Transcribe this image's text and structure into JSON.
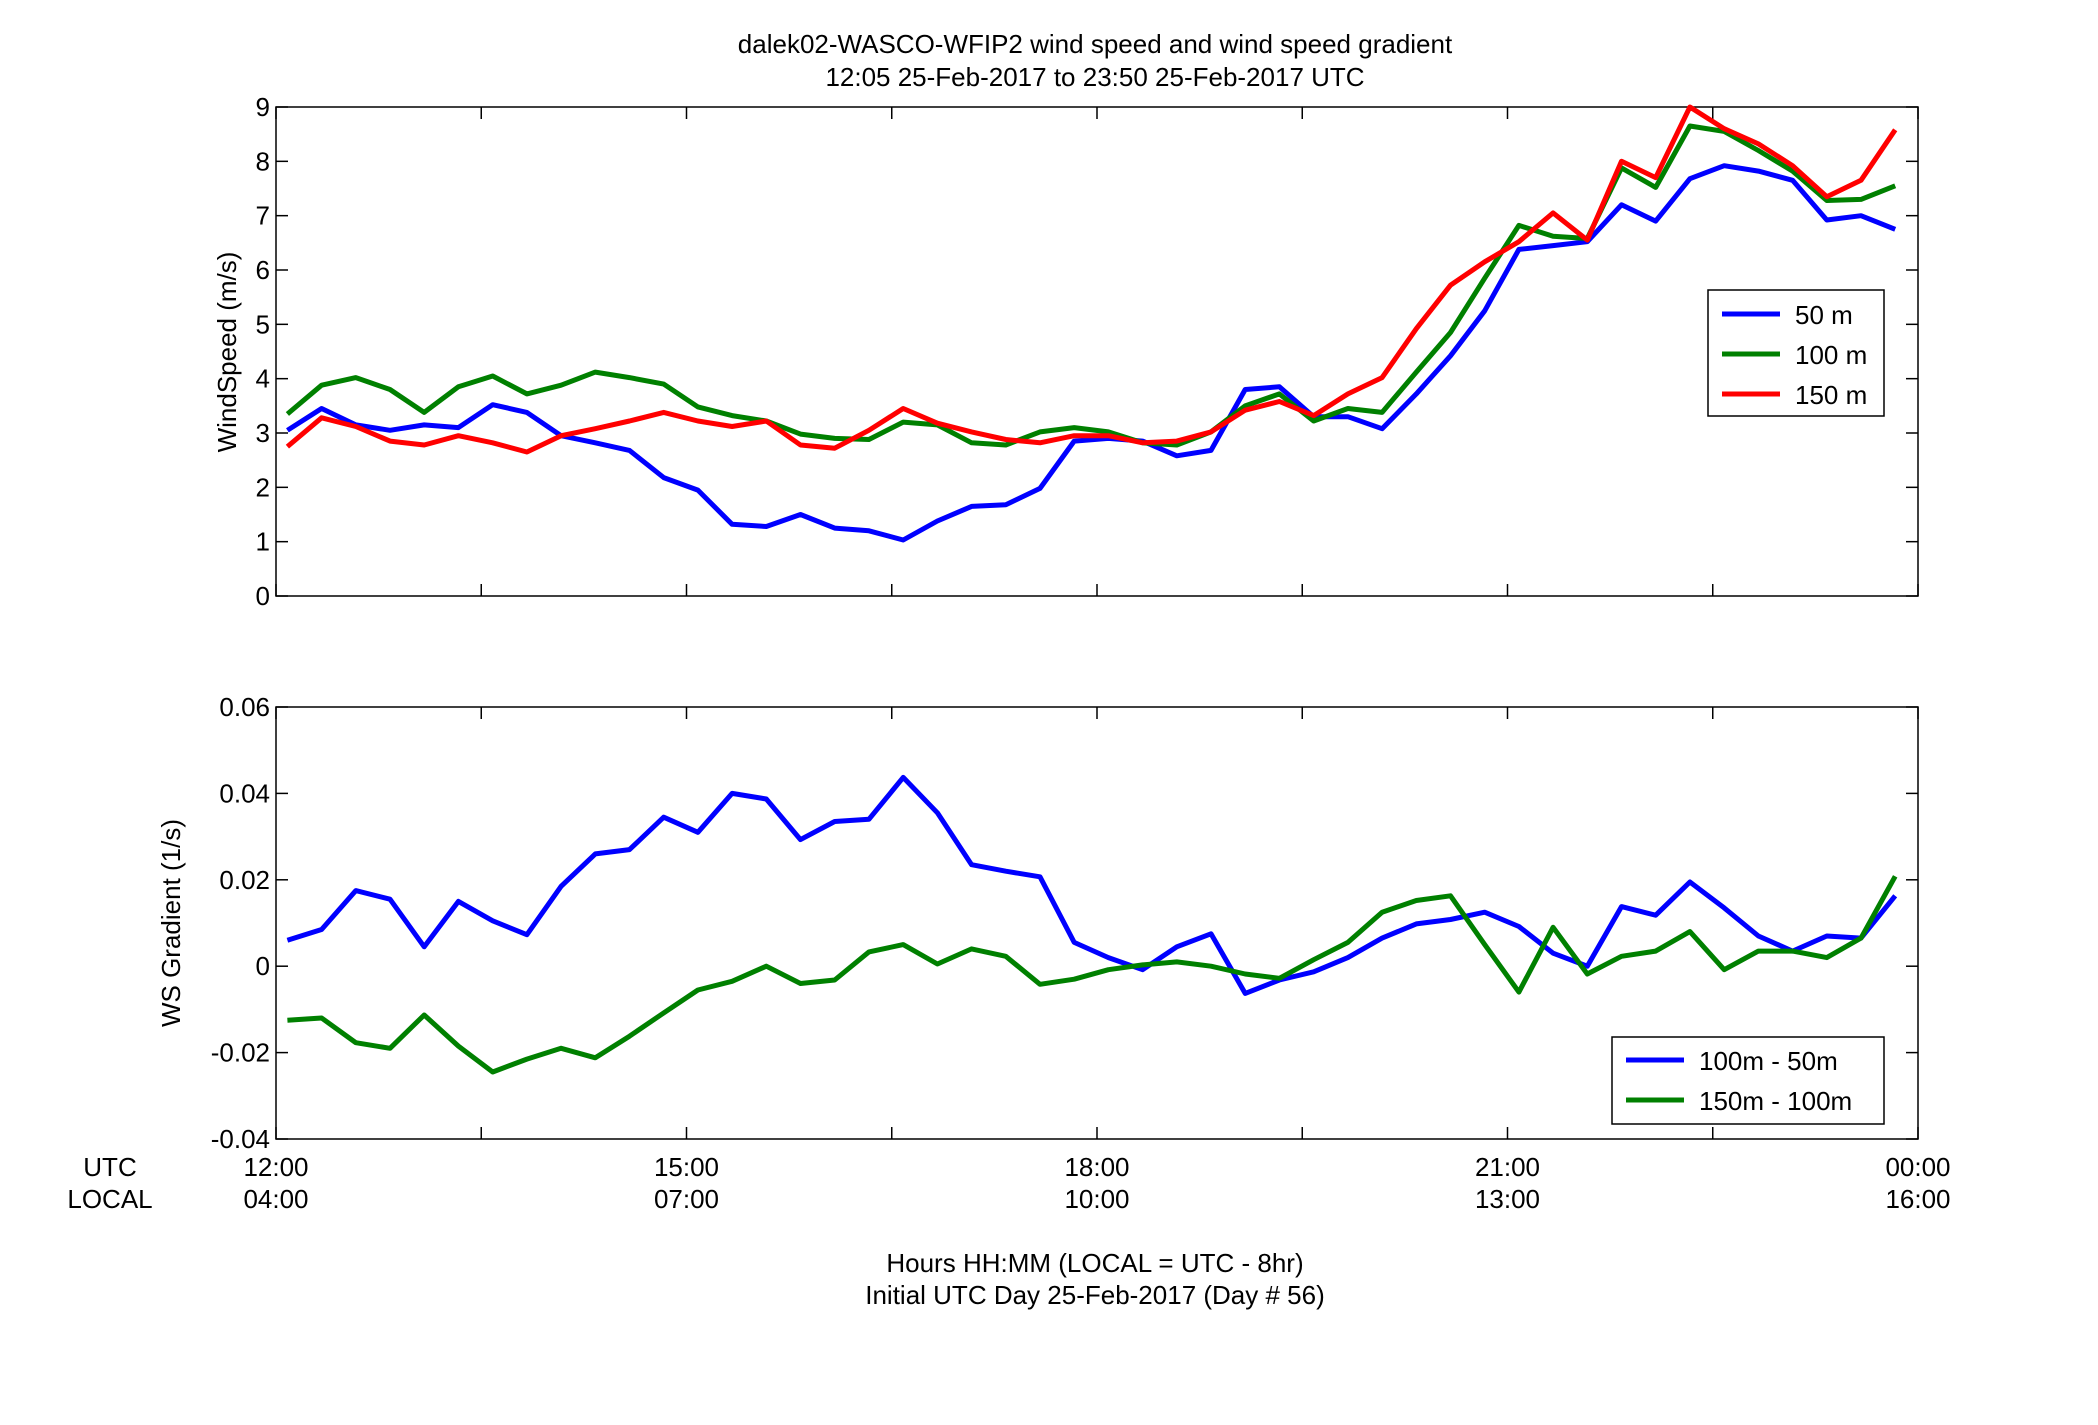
{
  "figure": {
    "title_line1": "dalek02-WASCO-WFIP2  wind speed and wind speed gradient",
    "title_line2": "12:05 25-Feb-2017 to 23:50 25-Feb-2017  UTC",
    "x_row_utc_label": "UTC",
    "x_row_local_label": "LOCAL",
    "xlabel_line1": "Hours HH:MM  (LOCAL = UTC - 8hr)",
    "xlabel_line2": "Initial UTC Day 25-Feb-2017 (Day # 56)"
  },
  "chart_data": [
    {
      "type": "line",
      "title": "",
      "ylabel": "WindSpeed (m/s)",
      "xlabel": "",
      "xlim_hours": [
        12,
        24
      ],
      "ylim": [
        0,
        9
      ],
      "yticks": [
        0,
        1,
        2,
        3,
        4,
        5,
        6,
        7,
        8,
        9
      ],
      "ytick_labels": [
        "0",
        "1",
        "2",
        "3",
        "4",
        "5",
        "6",
        "7",
        "8",
        "9"
      ],
      "grid": false,
      "legend_position": "right",
      "x_utc": [
        "12:05",
        "12:20",
        "12:35",
        "12:50",
        "13:05",
        "13:20",
        "13:35",
        "13:50",
        "14:05",
        "14:20",
        "14:35",
        "14:50",
        "15:05",
        "15:20",
        "15:35",
        "15:50",
        "16:05",
        "16:20",
        "16:35",
        "16:50",
        "17:05",
        "17:20",
        "17:35",
        "17:50",
        "18:05",
        "18:20",
        "18:35",
        "18:50",
        "19:05",
        "19:20",
        "19:35",
        "19:50",
        "20:05",
        "20:20",
        "20:35",
        "20:50",
        "21:05",
        "21:20",
        "21:35",
        "21:50",
        "22:05",
        "22:20",
        "22:35",
        "22:50",
        "23:05",
        "23:20",
        "23:35",
        "23:50"
      ],
      "series": [
        {
          "name": "50 m",
          "color": "#0000ff",
          "values": [
            3.05,
            3.45,
            3.15,
            3.05,
            3.15,
            3.1,
            3.52,
            3.38,
            2.95,
            2.82,
            2.68,
            2.18,
            1.95,
            1.32,
            1.28,
            1.5,
            1.25,
            1.2,
            1.03,
            1.38,
            1.65,
            1.68,
            1.98,
            2.85,
            2.9,
            2.85,
            2.58,
            2.68,
            3.8,
            3.85,
            3.3,
            3.3,
            3.08,
            3.72,
            4.42,
            5.25,
            6.38,
            6.45,
            6.52,
            7.2,
            6.9,
            7.68,
            7.92,
            7.82,
            7.65,
            6.92,
            7.0,
            6.75
          ]
        },
        {
          "name": "100 m",
          "color": "#008000",
          "values": [
            3.35,
            3.88,
            4.02,
            3.8,
            3.38,
            3.85,
            4.05,
            3.72,
            3.88,
            4.12,
            4.02,
            3.9,
            3.48,
            3.32,
            3.22,
            2.98,
            2.9,
            2.88,
            3.2,
            3.15,
            2.82,
            2.78,
            3.02,
            3.1,
            3.02,
            2.82,
            2.78,
            3.02,
            3.5,
            3.72,
            3.22,
            3.45,
            3.38,
            4.12,
            4.85,
            5.85,
            6.82,
            6.62,
            6.58,
            7.88,
            7.52,
            8.65,
            8.55,
            8.2,
            7.82,
            7.28,
            7.3,
            7.55
          ]
        },
        {
          "name": "150 m",
          "color": "#ff0000",
          "values": [
            2.75,
            3.28,
            3.12,
            2.85,
            2.78,
            2.95,
            2.82,
            2.65,
            2.95,
            3.08,
            3.22,
            3.38,
            3.22,
            3.12,
            3.22,
            2.78,
            2.72,
            3.05,
            3.45,
            3.18,
            3.02,
            2.88,
            2.82,
            2.95,
            2.95,
            2.82,
            2.85,
            3.02,
            3.42,
            3.58,
            3.32,
            3.72,
            4.02,
            4.92,
            5.72,
            6.15,
            6.52,
            7.05,
            6.55,
            8.0,
            7.7,
            9.0,
            8.6,
            8.32,
            7.92,
            7.35,
            7.65,
            8.58
          ]
        }
      ]
    },
    {
      "type": "line",
      "title": "",
      "ylabel": "WS Gradient (1/s)",
      "xlabel": "",
      "xlim_hours": [
        12,
        24
      ],
      "ylim": [
        -0.04,
        0.06
      ],
      "yticks": [
        -0.04,
        -0.02,
        0,
        0.02,
        0.04,
        0.06
      ],
      "ytick_labels": [
        "-0.04",
        "-0.02",
        "0",
        "0.02",
        "0.04",
        "0.06"
      ],
      "grid": false,
      "legend_position": "bottom-right",
      "xticks_hours": [
        12,
        15,
        18,
        21,
        24
      ],
      "xtick_labels_utc": [
        "12:00",
        "15:00",
        "18:00",
        "21:00",
        "00:00"
      ],
      "xtick_labels_local": [
        "04:00",
        "07:00",
        "10:00",
        "13:00",
        "16:00"
      ],
      "x_utc": [
        "12:05",
        "12:20",
        "12:35",
        "12:50",
        "13:05",
        "13:20",
        "13:35",
        "13:50",
        "14:05",
        "14:20",
        "14:35",
        "14:50",
        "15:05",
        "15:20",
        "15:35",
        "15:50",
        "16:05",
        "16:20",
        "16:35",
        "16:50",
        "17:05",
        "17:20",
        "17:35",
        "17:50",
        "18:05",
        "18:20",
        "18:35",
        "18:50",
        "19:05",
        "19:20",
        "19:35",
        "19:50",
        "20:05",
        "20:20",
        "20:35",
        "20:50",
        "21:05",
        "21:20",
        "21:35",
        "21:50",
        "22:05",
        "22:20",
        "22:35",
        "22:50",
        "23:05",
        "23:20",
        "23:35",
        "23:50"
      ],
      "series": [
        {
          "name": "100m - 50m",
          "color": "#0000ff",
          "values": [
            0.006,
            0.0085,
            0.0175,
            0.0155,
            0.0045,
            0.015,
            0.0105,
            0.0073,
            0.0185,
            0.026,
            0.027,
            0.0345,
            0.031,
            0.04,
            0.0387,
            0.0293,
            0.0335,
            0.034,
            0.0437,
            0.0355,
            0.0235,
            0.022,
            0.0207,
            0.0055,
            0.002,
            -0.0008,
            0.0045,
            0.0075,
            -0.0063,
            -0.0032,
            -0.0013,
            0.002,
            0.0065,
            0.0098,
            0.0108,
            0.0125,
            0.0092,
            0.003,
            0.0,
            0.0138,
            0.0118,
            0.0195,
            0.0135,
            0.007,
            0.0035,
            0.007,
            0.0065,
            0.0163
          ]
        },
        {
          "name": "150m - 100m",
          "color": "#008000",
          "values": [
            -0.0125,
            -0.012,
            -0.0177,
            -0.019,
            -0.0113,
            -0.0185,
            -0.0245,
            -0.0215,
            -0.019,
            -0.0212,
            -0.0162,
            -0.0108,
            -0.0055,
            -0.0035,
            0.0,
            -0.004,
            -0.0032,
            0.0033,
            0.005,
            0.0005,
            0.004,
            0.0023,
            -0.0042,
            -0.003,
            -0.0008,
            0.0003,
            0.001,
            0.0,
            -0.0018,
            -0.0028,
            0.0015,
            0.0055,
            0.0125,
            0.0152,
            0.0163,
            0.005,
            -0.006,
            0.009,
            -0.0018,
            0.0023,
            0.0035,
            0.008,
            -0.0008,
            0.0035,
            0.0035,
            0.002,
            0.0065,
            0.0208
          ]
        }
      ]
    }
  ]
}
